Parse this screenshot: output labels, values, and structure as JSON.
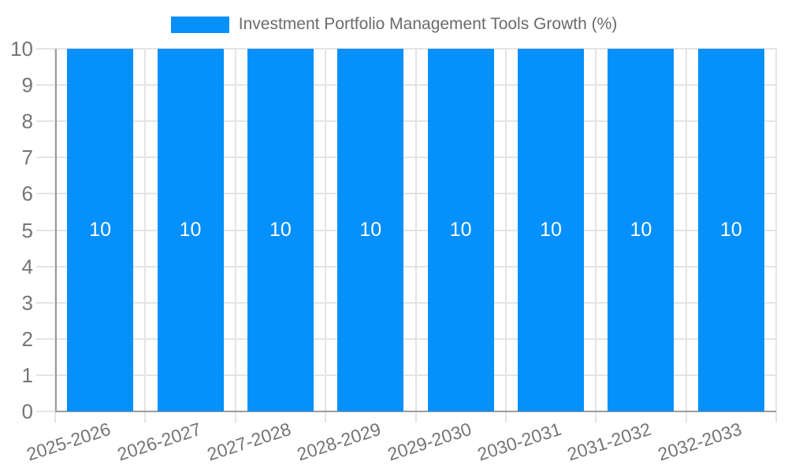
{
  "legend": {
    "label": "Investment Portfolio Management Tools Growth (%)"
  },
  "chart_data": {
    "type": "bar",
    "title": "Investment Portfolio Management Tools Growth (%)",
    "categories": [
      "2025-2026",
      "2026-2027",
      "2027-2028",
      "2028-2029",
      "2029-2030",
      "2030-2031",
      "2031-2032",
      "2032-2033"
    ],
    "values": [
      10,
      10,
      10,
      10,
      10,
      10,
      10,
      10
    ],
    "bar_labels": [
      "10",
      "10",
      "10",
      "10",
      "10",
      "10",
      "10",
      "10"
    ],
    "xlabel": "",
    "ylabel": "",
    "ylim": [
      0,
      10
    ],
    "yticks": [
      0,
      1,
      2,
      3,
      4,
      5,
      6,
      7,
      8,
      9,
      10
    ],
    "grid": true,
    "legend_position": "top-center",
    "colors": {
      "bar": "#0590fb",
      "bar_label": "#ffffff",
      "tick_text": "#757575",
      "legend_text": "#6b6b6b",
      "grid": "#e4e4e4",
      "axis": "#9c9c9c",
      "background": "#ffffff"
    }
  }
}
